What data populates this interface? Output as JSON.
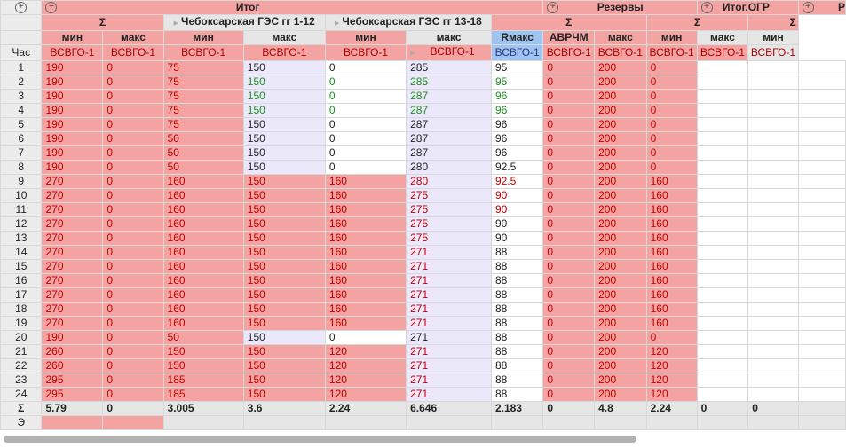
{
  "groups": {
    "itog": "Итог",
    "rezervy": "Резервы",
    "itog_ogr": "Итог.ОГР",
    "partial_p": "Р"
  },
  "subgroups": {
    "sigma1": "Σ",
    "cheb_1_12": "Чебоксарская ГЭС гг 1-12",
    "cheb_13_18": "Чебоксарская ГЭС гг 13-18",
    "sigma2": "Σ",
    "sigma3": "Σ"
  },
  "columns": [
    "мин",
    "макс",
    "мин",
    "макс",
    "мин",
    "макс",
    "Rмакс",
    "АВРЧМ",
    "макс",
    "мин",
    "макс",
    "мин"
  ],
  "row_header_label": "Час",
  "zone": "ВСВГО-1",
  "hours": [
    "1",
    "2",
    "3",
    "4",
    "5",
    "6",
    "7",
    "8",
    "9",
    "10",
    "11",
    "12",
    "13",
    "14",
    "15",
    "16",
    "17",
    "18",
    "19",
    "20",
    "21",
    "22",
    "23",
    "24"
  ],
  "rows": [
    [
      "190",
      "0",
      "75",
      "150",
      "0",
      "285",
      "95",
      "0",
      "200",
      "0",
      "",
      ""
    ],
    [
      "190",
      "0",
      "75",
      "150",
      "0",
      "285",
      "95",
      "0",
      "200",
      "0",
      "",
      ""
    ],
    [
      "190",
      "0",
      "75",
      "150",
      "0",
      "287",
      "96",
      "0",
      "200",
      "0",
      "",
      ""
    ],
    [
      "190",
      "0",
      "75",
      "150",
      "0",
      "287",
      "96",
      "0",
      "200",
      "0",
      "",
      ""
    ],
    [
      "190",
      "0",
      "75",
      "150",
      "0",
      "287",
      "96",
      "0",
      "200",
      "0",
      "",
      ""
    ],
    [
      "190",
      "0",
      "50",
      "150",
      "0",
      "287",
      "96",
      "0",
      "200",
      "0",
      "",
      ""
    ],
    [
      "190",
      "0",
      "50",
      "150",
      "0",
      "287",
      "96",
      "0",
      "200",
      "0",
      "",
      ""
    ],
    [
      "190",
      "0",
      "50",
      "150",
      "0",
      "280",
      "92.5",
      "0",
      "200",
      "0",
      "",
      ""
    ],
    [
      "270",
      "0",
      "160",
      "150",
      "160",
      "280",
      "92.5",
      "0",
      "200",
      "160",
      "",
      ""
    ],
    [
      "270",
      "0",
      "160",
      "150",
      "160",
      "275",
      "90",
      "0",
      "200",
      "160",
      "",
      ""
    ],
    [
      "270",
      "0",
      "160",
      "150",
      "160",
      "275",
      "90",
      "0",
      "200",
      "160",
      "",
      ""
    ],
    [
      "270",
      "0",
      "160",
      "150",
      "160",
      "275",
      "90",
      "0",
      "200",
      "160",
      "",
      ""
    ],
    [
      "270",
      "0",
      "160",
      "150",
      "160",
      "275",
      "90",
      "0",
      "200",
      "160",
      "",
      ""
    ],
    [
      "270",
      "0",
      "160",
      "150",
      "160",
      "271",
      "88",
      "0",
      "200",
      "160",
      "",
      ""
    ],
    [
      "270",
      "0",
      "160",
      "150",
      "160",
      "271",
      "88",
      "0",
      "200",
      "160",
      "",
      ""
    ],
    [
      "270",
      "0",
      "160",
      "150",
      "160",
      "271",
      "88",
      "0",
      "200",
      "160",
      "",
      ""
    ],
    [
      "270",
      "0",
      "160",
      "150",
      "160",
      "271",
      "88",
      "0",
      "200",
      "160",
      "",
      ""
    ],
    [
      "270",
      "0",
      "160",
      "150",
      "160",
      "271",
      "88",
      "0",
      "200",
      "160",
      "",
      ""
    ],
    [
      "270",
      "0",
      "160",
      "150",
      "160",
      "271",
      "88",
      "0",
      "200",
      "160",
      "",
      ""
    ],
    [
      "190",
      "0",
      "50",
      "150",
      "0",
      "271",
      "88",
      "0",
      "200",
      "0",
      "",
      ""
    ],
    [
      "260",
      "0",
      "150",
      "150",
      "120",
      "271",
      "88",
      "0",
      "200",
      "120",
      "",
      ""
    ],
    [
      "260",
      "0",
      "150",
      "150",
      "120",
      "271",
      "88",
      "0",
      "200",
      "120",
      "",
      ""
    ],
    [
      "295",
      "0",
      "185",
      "150",
      "120",
      "271",
      "88",
      "0",
      "200",
      "120",
      "",
      ""
    ],
    [
      "295",
      "0",
      "185",
      "150",
      "120",
      "271",
      "88",
      "0",
      "200",
      "120",
      "",
      ""
    ]
  ],
  "sum_label": "Σ",
  "sums": [
    "5.79",
    "0",
    "3.005",
    "3.6",
    "2.24",
    "6.646",
    "2.183",
    "0",
    "4.8",
    "2.24",
    "0",
    "0"
  ],
  "e_label": "Э",
  "colors": {
    "pink": "#f4a3a3",
    "lavender": "#ece8fb",
    "blue_header": "#9fc4ef",
    "red_text": "#c00000",
    "green_text": "#1f8f1f"
  }
}
